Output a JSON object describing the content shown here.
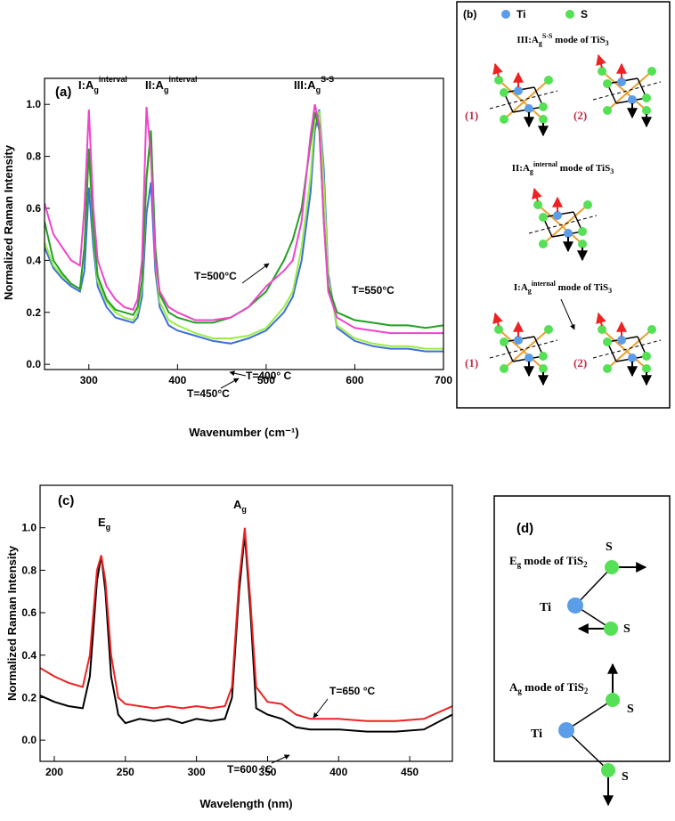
{
  "chart_data": [
    {
      "type": "line",
      "panel_label": "(a)",
      "x_label": "Wavenumber (cm⁻¹)",
      "y_label": "Normalized Raman Intensity",
      "x": [
        250,
        260,
        270,
        280,
        290,
        295,
        300,
        305,
        310,
        320,
        330,
        340,
        350,
        355,
        360,
        365,
        370,
        375,
        380,
        390,
        400,
        420,
        440,
        460,
        480,
        500,
        520,
        530,
        540,
        550,
        555,
        560,
        565,
        570,
        580,
        600,
        620,
        640,
        660,
        680,
        700
      ],
      "series": [
        {
          "name": "T=400° C",
          "color": "#3d6fd6",
          "values": [
            0.45,
            0.37,
            0.33,
            0.3,
            0.28,
            0.36,
            0.68,
            0.45,
            0.3,
            0.22,
            0.18,
            0.17,
            0.16,
            0.18,
            0.26,
            0.58,
            0.7,
            0.36,
            0.22,
            0.15,
            0.13,
            0.11,
            0.09,
            0.08,
            0.1,
            0.13,
            0.2,
            0.26,
            0.4,
            0.66,
            0.9,
            0.98,
            0.75,
            0.35,
            0.14,
            0.09,
            0.07,
            0.06,
            0.06,
            0.05,
            0.05
          ]
        },
        {
          "name": "T=450°C",
          "color": "#99ee44",
          "values": [
            0.47,
            0.38,
            0.34,
            0.31,
            0.29,
            0.45,
            0.82,
            0.5,
            0.32,
            0.24,
            0.2,
            0.18,
            0.17,
            0.2,
            0.3,
            0.7,
            0.88,
            0.4,
            0.24,
            0.17,
            0.15,
            0.12,
            0.1,
            0.1,
            0.11,
            0.14,
            0.22,
            0.28,
            0.45,
            0.72,
            0.95,
            0.97,
            0.7,
            0.33,
            0.15,
            0.1,
            0.08,
            0.07,
            0.07,
            0.06,
            0.06
          ]
        },
        {
          "name": "T=500°C",
          "color": "#22a022",
          "values": [
            0.55,
            0.4,
            0.35,
            0.31,
            0.29,
            0.45,
            0.83,
            0.52,
            0.34,
            0.25,
            0.21,
            0.2,
            0.19,
            0.22,
            0.32,
            0.72,
            0.9,
            0.45,
            0.27,
            0.2,
            0.18,
            0.16,
            0.16,
            0.18,
            0.22,
            0.28,
            0.4,
            0.48,
            0.6,
            0.85,
            0.97,
            0.9,
            0.55,
            0.3,
            0.2,
            0.17,
            0.16,
            0.15,
            0.15,
            0.14,
            0.15
          ]
        },
        {
          "name": "T=550°C",
          "color": "#ee44cc",
          "values": [
            0.62,
            0.5,
            0.45,
            0.4,
            0.38,
            0.6,
            0.98,
            0.6,
            0.4,
            0.3,
            0.25,
            0.22,
            0.21,
            0.25,
            0.4,
            0.99,
            0.8,
            0.4,
            0.28,
            0.22,
            0.2,
            0.17,
            0.17,
            0.18,
            0.22,
            0.3,
            0.36,
            0.4,
            0.55,
            0.88,
            1.0,
            0.92,
            0.55,
            0.28,
            0.18,
            0.14,
            0.13,
            0.12,
            0.12,
            0.12,
            0.12
          ]
        }
      ],
      "peak_labels": [
        {
          "main": "I:A",
          "sub": "g",
          "sup": "interval"
        },
        {
          "main": "II:A",
          "sub": "g",
          "sup": "interval"
        },
        {
          "main": "III:A",
          "sub": "g",
          "sup": "S-S"
        }
      ],
      "xlim": [
        250,
        700
      ],
      "xticks": [
        300,
        400,
        500,
        600,
        700
      ],
      "ylim": [
        -0.02,
        1.1
      ],
      "yticks": [
        {
          "value": 0,
          "label": "0.0"
        },
        0.2,
        0.4,
        0.6,
        0.8,
        {
          "value": 1,
          "label": "1.0"
        }
      ]
    },
    {
      "type": "line",
      "panel_label": "(c)",
      "x_label": "Wavelength (nm)",
      "y_label": "Normalized Raman Intensity",
      "x": [
        190,
        200,
        210,
        220,
        225,
        230,
        233,
        236,
        240,
        245,
        250,
        260,
        270,
        280,
        290,
        300,
        310,
        320,
        325,
        330,
        334,
        338,
        342,
        350,
        360,
        370,
        380,
        400,
        420,
        440,
        460,
        480
      ],
      "series": [
        {
          "name": "T=600 °C",
          "color": "#000000",
          "values": [
            0.21,
            0.18,
            0.16,
            0.15,
            0.3,
            0.75,
            0.87,
            0.7,
            0.3,
            0.12,
            0.08,
            0.1,
            0.09,
            0.1,
            0.08,
            0.1,
            0.09,
            0.1,
            0.2,
            0.7,
            0.97,
            0.6,
            0.15,
            0.12,
            0.1,
            0.06,
            0.05,
            0.05,
            0.04,
            0.04,
            0.05,
            0.12
          ]
        },
        {
          "name": "T=650 °C",
          "color": "#ee2222",
          "values": [
            0.34,
            0.3,
            0.27,
            0.25,
            0.4,
            0.8,
            0.87,
            0.75,
            0.4,
            0.2,
            0.17,
            0.16,
            0.15,
            0.16,
            0.15,
            0.16,
            0.15,
            0.16,
            0.25,
            0.75,
            1.0,
            0.65,
            0.25,
            0.18,
            0.17,
            0.12,
            0.1,
            0.1,
            0.09,
            0.09,
            0.1,
            0.16
          ]
        }
      ],
      "peak_labels": [
        {
          "main": "E",
          "sub": "g"
        },
        {
          "main": "A",
          "sub": "g"
        }
      ],
      "xlim": [
        190,
        480
      ],
      "xticks": [
        200,
        250,
        300,
        350,
        400,
        450
      ],
      "ylim": [
        -0.1,
        1.2
      ],
      "yticks": [
        {
          "value": 0,
          "label": "0.0"
        },
        0.2,
        0.4,
        0.6,
        0.8,
        {
          "value": 1,
          "label": "1.0"
        }
      ]
    }
  ],
  "diagram_b": {
    "label": "(b)",
    "legend": [
      "Ti",
      "S"
    ],
    "modes": [
      {
        "pre": "III:A",
        "sub": "g",
        "sup": "S-S",
        "post": " mode of TiS",
        "sub2": "3"
      },
      {
        "pre": "II:A",
        "sub": "g",
        "sup": "internal",
        "post": " mode of TiS",
        "sub2": "3"
      },
      {
        "pre": "I:A",
        "sub": "g",
        "sup": "internal",
        "post": " mode of TiS",
        "sub2": "3"
      }
    ],
    "numbers": [
      "(1)",
      "(2)",
      "(1)",
      "(2)"
    ]
  },
  "diagram_d": {
    "label": "(d)",
    "modes": [
      {
        "pre": "E",
        "sub": "g",
        "post": " mode of TiS",
        "sub2": "2",
        "atoms": [
          "S",
          "Ti",
          "S"
        ]
      },
      {
        "pre": "A",
        "sub": "g",
        "post": " mode of TiS",
        "sub2": "2",
        "atoms": [
          "S",
          "Ti",
          "S"
        ]
      }
    ]
  }
}
